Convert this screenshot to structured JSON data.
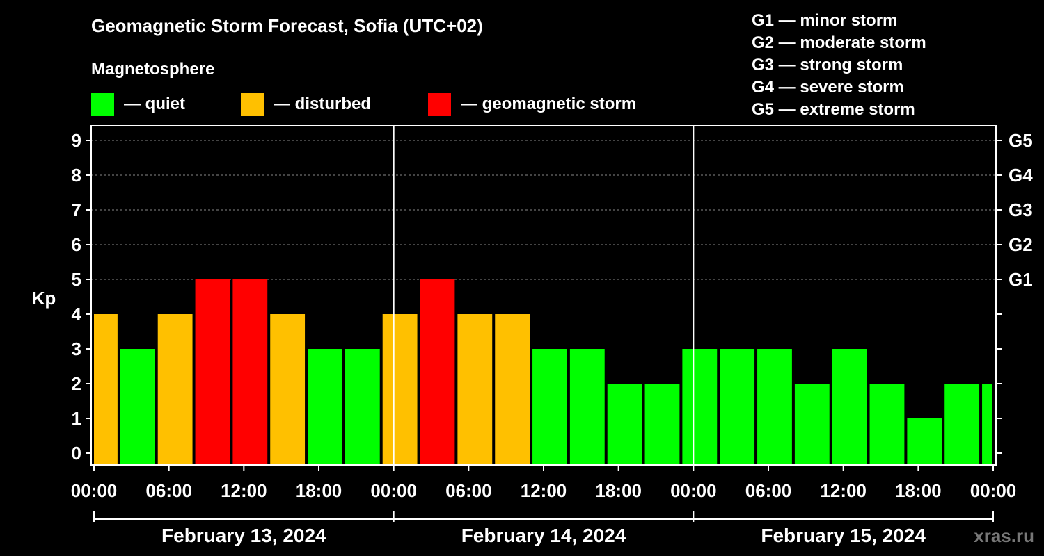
{
  "title": "Geomagnetic Storm Forecast, Sofia (UTC+02)",
  "subtitle": "Magnetosphere",
  "legend": [
    {
      "label": "— quiet",
      "color": "#00ff00"
    },
    {
      "label": "— disturbed",
      "color": "#ffc000"
    },
    {
      "label": "— geomagnetic storm",
      "color": "#ff0000"
    }
  ],
  "storm_levels": [
    "G1 — minor storm",
    "G2 — moderate storm",
    "G3 — strong storm",
    "G4 — severe storm",
    "G5 — extreme storm"
  ],
  "watermark": "xras.ru",
  "chart_data": {
    "type": "bar",
    "title": "Geomagnetic Storm Forecast, Sofia (UTC+02)",
    "ylabel": "Kp",
    "ylim": [
      0,
      9
    ],
    "yticks": [
      "0",
      "1",
      "2",
      "3",
      "4",
      "5",
      "6",
      "7",
      "8",
      "9"
    ],
    "right_ticks": [
      {
        "kp": 5,
        "label": "G1"
      },
      {
        "kp": 6,
        "label": "G2"
      },
      {
        "kp": 7,
        "label": "G3"
      },
      {
        "kp": 8,
        "label": "G4"
      },
      {
        "kp": 9,
        "label": "G5"
      }
    ],
    "x_range_hours": [
      0,
      72
    ],
    "xticks": [
      "00:00",
      "06:00",
      "12:00",
      "18:00",
      "00:00",
      "06:00",
      "12:00",
      "18:00",
      "00:00",
      "06:00",
      "12:00",
      "18:00",
      "00:00"
    ],
    "days": [
      "February 13, 2024",
      "February 14, 2024",
      "February 15, 2024"
    ],
    "grid": true,
    "bars": [
      {
        "start": 0,
        "end": 2,
        "kp": 4,
        "status": "disturbed"
      },
      {
        "start": 2,
        "end": 5,
        "kp": 3,
        "status": "quiet"
      },
      {
        "start": 5,
        "end": 8,
        "kp": 4,
        "status": "disturbed"
      },
      {
        "start": 8,
        "end": 11,
        "kp": 5,
        "status": "storm"
      },
      {
        "start": 11,
        "end": 14,
        "kp": 5,
        "status": "storm"
      },
      {
        "start": 14,
        "end": 17,
        "kp": 4,
        "status": "disturbed"
      },
      {
        "start": 17,
        "end": 20,
        "kp": 3,
        "status": "quiet"
      },
      {
        "start": 20,
        "end": 23,
        "kp": 3,
        "status": "quiet"
      },
      {
        "start": 23,
        "end": 26,
        "kp": 4,
        "status": "disturbed"
      },
      {
        "start": 26,
        "end": 29,
        "kp": 5,
        "status": "storm"
      },
      {
        "start": 29,
        "end": 32,
        "kp": 4,
        "status": "disturbed"
      },
      {
        "start": 32,
        "end": 35,
        "kp": 4,
        "status": "disturbed"
      },
      {
        "start": 35,
        "end": 38,
        "kp": 3,
        "status": "quiet"
      },
      {
        "start": 38,
        "end": 41,
        "kp": 3,
        "status": "quiet"
      },
      {
        "start": 41,
        "end": 44,
        "kp": 2,
        "status": "quiet"
      },
      {
        "start": 44,
        "end": 47,
        "kp": 2,
        "status": "quiet"
      },
      {
        "start": 47,
        "end": 50,
        "kp": 3,
        "status": "quiet"
      },
      {
        "start": 50,
        "end": 53,
        "kp": 3,
        "status": "quiet"
      },
      {
        "start": 53,
        "end": 56,
        "kp": 3,
        "status": "quiet"
      },
      {
        "start": 56,
        "end": 59,
        "kp": 2,
        "status": "quiet"
      },
      {
        "start": 59,
        "end": 62,
        "kp": 3,
        "status": "quiet"
      },
      {
        "start": 62,
        "end": 65,
        "kp": 2,
        "status": "quiet"
      },
      {
        "start": 65,
        "end": 68,
        "kp": 1,
        "status": "quiet"
      },
      {
        "start": 68,
        "end": 71,
        "kp": 2,
        "status": "quiet"
      },
      {
        "start": 71,
        "end": 72,
        "kp": 2,
        "status": "quiet"
      }
    ],
    "colors": {
      "quiet": "#00ff00",
      "disturbed": "#ffc000",
      "storm": "#ff0000"
    }
  }
}
